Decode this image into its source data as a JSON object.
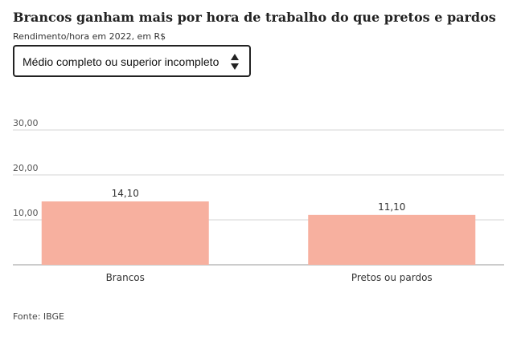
{
  "header": {
    "title": "Brancos ganham mais por hora de trabalho do que pretos e pardos",
    "subtitle": "Rendimento/hora em 2022, em R$"
  },
  "filter": {
    "selected": "Médio completo ou superior incompleto",
    "icon": "up-down-arrows-icon"
  },
  "chart_data": {
    "type": "bar",
    "title": "Brancos ganham mais por hora de trabalho do que pretos e pardos",
    "subtitle": "Rendimento/hora em 2022, em R$",
    "categories": [
      "Brancos",
      "Pretos ou pardos"
    ],
    "values": [
      14.1,
      11.1
    ],
    "value_labels": [
      "14,10",
      "11,10"
    ],
    "yticks": [
      10,
      20,
      30
    ],
    "ytick_labels": [
      "10,00",
      "20,00",
      "30,00"
    ],
    "ylim": [
      0,
      30
    ],
    "xlabel": "",
    "ylabel": "",
    "grid": true,
    "bar_color": "#f7b09f"
  },
  "footer": {
    "source": "Fonte: IBGE"
  }
}
